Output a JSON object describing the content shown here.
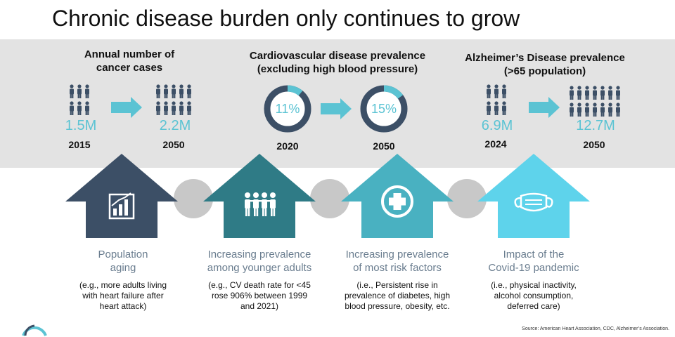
{
  "title": "Chronic disease burden only continues to grow",
  "stats": {
    "cancer": {
      "header_line1": "Annual number of",
      "header_line2": "cancer cases",
      "from_value": "1.5M",
      "to_value": "2.2M",
      "from_year": "2015",
      "to_year": "2050"
    },
    "cardio": {
      "header_line1": "Cardiovascular disease prevalence",
      "header_line2": "(excluding high blood pressure)",
      "from_value": "11%",
      "to_value": "15%",
      "from_year": "2020",
      "to_year": "2050",
      "from_fraction": 0.11,
      "to_fraction": 0.15
    },
    "alz": {
      "header_line1": "Alzheimer’s Disease prevalence",
      "header_line2": "(>65 population)",
      "from_value": "6.9M",
      "to_value": "12.7M",
      "from_year": "2024",
      "to_year": "2050"
    }
  },
  "drivers": [
    {
      "label_line1": "Population",
      "label_line2": "aging",
      "detail_line1": "(e.g., more adults living",
      "detail_line2": "with heart failure after",
      "detail_line3": "heart attack)",
      "icon": "bar-chart-icon",
      "color": "#3c4f66"
    },
    {
      "label_line1": "Increasing prevalence",
      "label_line2": "among younger adults",
      "detail_line1": "(e.g., CV death rate for <45",
      "detail_line2": "rose 906% between 1999",
      "detail_line3": "and 2021)",
      "icon": "people-icon",
      "color": "#2f7b86"
    },
    {
      "label_line1": "Increasing prevalence",
      "label_line2": "of most risk factors",
      "detail_line1": "(i.e., Persistent rise in",
      "detail_line2": "prevalence of diabetes, high",
      "detail_line3": "blood pressure, obesity, etc.",
      "icon": "medical-cross-icon",
      "color": "#49b1c1"
    },
    {
      "label_line1": "Impact of the",
      "label_line2": "Covid-19 pandemic",
      "detail_line1": "(i.e., physical inactivity,",
      "detail_line2": "alcohol consumption,",
      "detail_line3": "deferred care)",
      "icon": "face-mask-icon",
      "color": "#5ed3eb"
    }
  ],
  "source": "Source: American Heart Association, CDC, Alzheimer’s Association."
}
